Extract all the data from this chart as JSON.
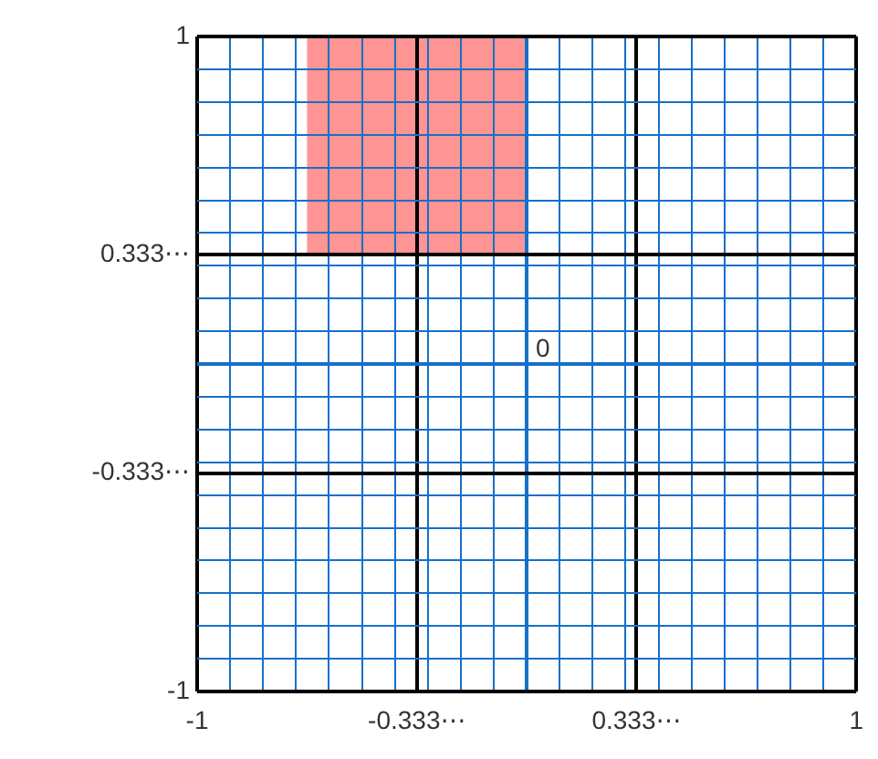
{
  "chart_data": {
    "type": "line",
    "x": [
      -0.667,
      0
    ],
    "series": [
      {
        "color": "#ff9494",
        "values": [
          null,
          null
        ],
        "upper": [
          1,
          1
        ],
        "lower": [
          0.333,
          0.333
        ]
      }
    ],
    "xlim": [
      -1,
      1
    ],
    "ylim": [
      -1,
      1
    ],
    "xticks": [
      -1,
      {
        "value": -0.9,
        "label": null
      },
      {
        "value": -0.8,
        "label": null
      },
      {
        "value": -0.7,
        "label": null
      },
      {
        "value": -0.6,
        "label": null
      },
      {
        "value": -0.5,
        "label": null
      },
      {
        "value": -0.4,
        "label": null
      },
      {
        "value": -0.3333,
        "label": "-0.333⋯"
      },
      {
        "value": -0.3,
        "label": null
      },
      {
        "value": -0.2,
        "label": null
      },
      {
        "value": -0.1,
        "label": null
      },
      {
        "value": 0,
        "label": null
      },
      {
        "value": 0.1,
        "label": null
      },
      {
        "value": 0.2,
        "label": null
      },
      {
        "value": 0.3,
        "label": null
      },
      {
        "value": 0.3333,
        "label": "0.333⋯"
      },
      {
        "value": 0.4,
        "label": null
      },
      {
        "value": 0.5,
        "label": null
      },
      {
        "value": 0.6,
        "label": null
      },
      {
        "value": 0.7,
        "label": null
      },
      {
        "value": 0.8,
        "label": null
      },
      {
        "value": 0.9,
        "label": null
      },
      1
    ],
    "yticks": [
      -1,
      {
        "value": -0.9,
        "label": null
      },
      {
        "value": -0.8,
        "label": null
      },
      {
        "value": -0.7,
        "label": null
      },
      {
        "value": -0.6,
        "label": null
      },
      {
        "value": -0.5,
        "label": null
      },
      {
        "value": -0.4,
        "label": null
      },
      {
        "value": -0.3333,
        "label": "-0.333⋯"
      },
      {
        "value": -0.3,
        "label": null
      },
      {
        "value": -0.2,
        "label": null
      },
      {
        "value": -0.1,
        "label": null
      },
      {
        "value": 0,
        "label": null
      },
      {
        "value": 0.1,
        "label": null
      },
      {
        "value": 0.2,
        "label": null
      },
      {
        "value": 0.3,
        "label": null
      },
      {
        "value": 0.3333,
        "label": "0.333⋯"
      },
      {
        "value": 0.4,
        "label": null
      },
      {
        "value": 0.5,
        "label": null
      },
      {
        "value": 0.6,
        "label": null
      },
      {
        "value": 0.7,
        "label": null
      },
      {
        "value": 0.8,
        "label": null
      },
      {
        "value": 0.9,
        "label": null
      },
      1
    ],
    "grid": true,
    "annotations": [
      "0"
    ]
  }
}
